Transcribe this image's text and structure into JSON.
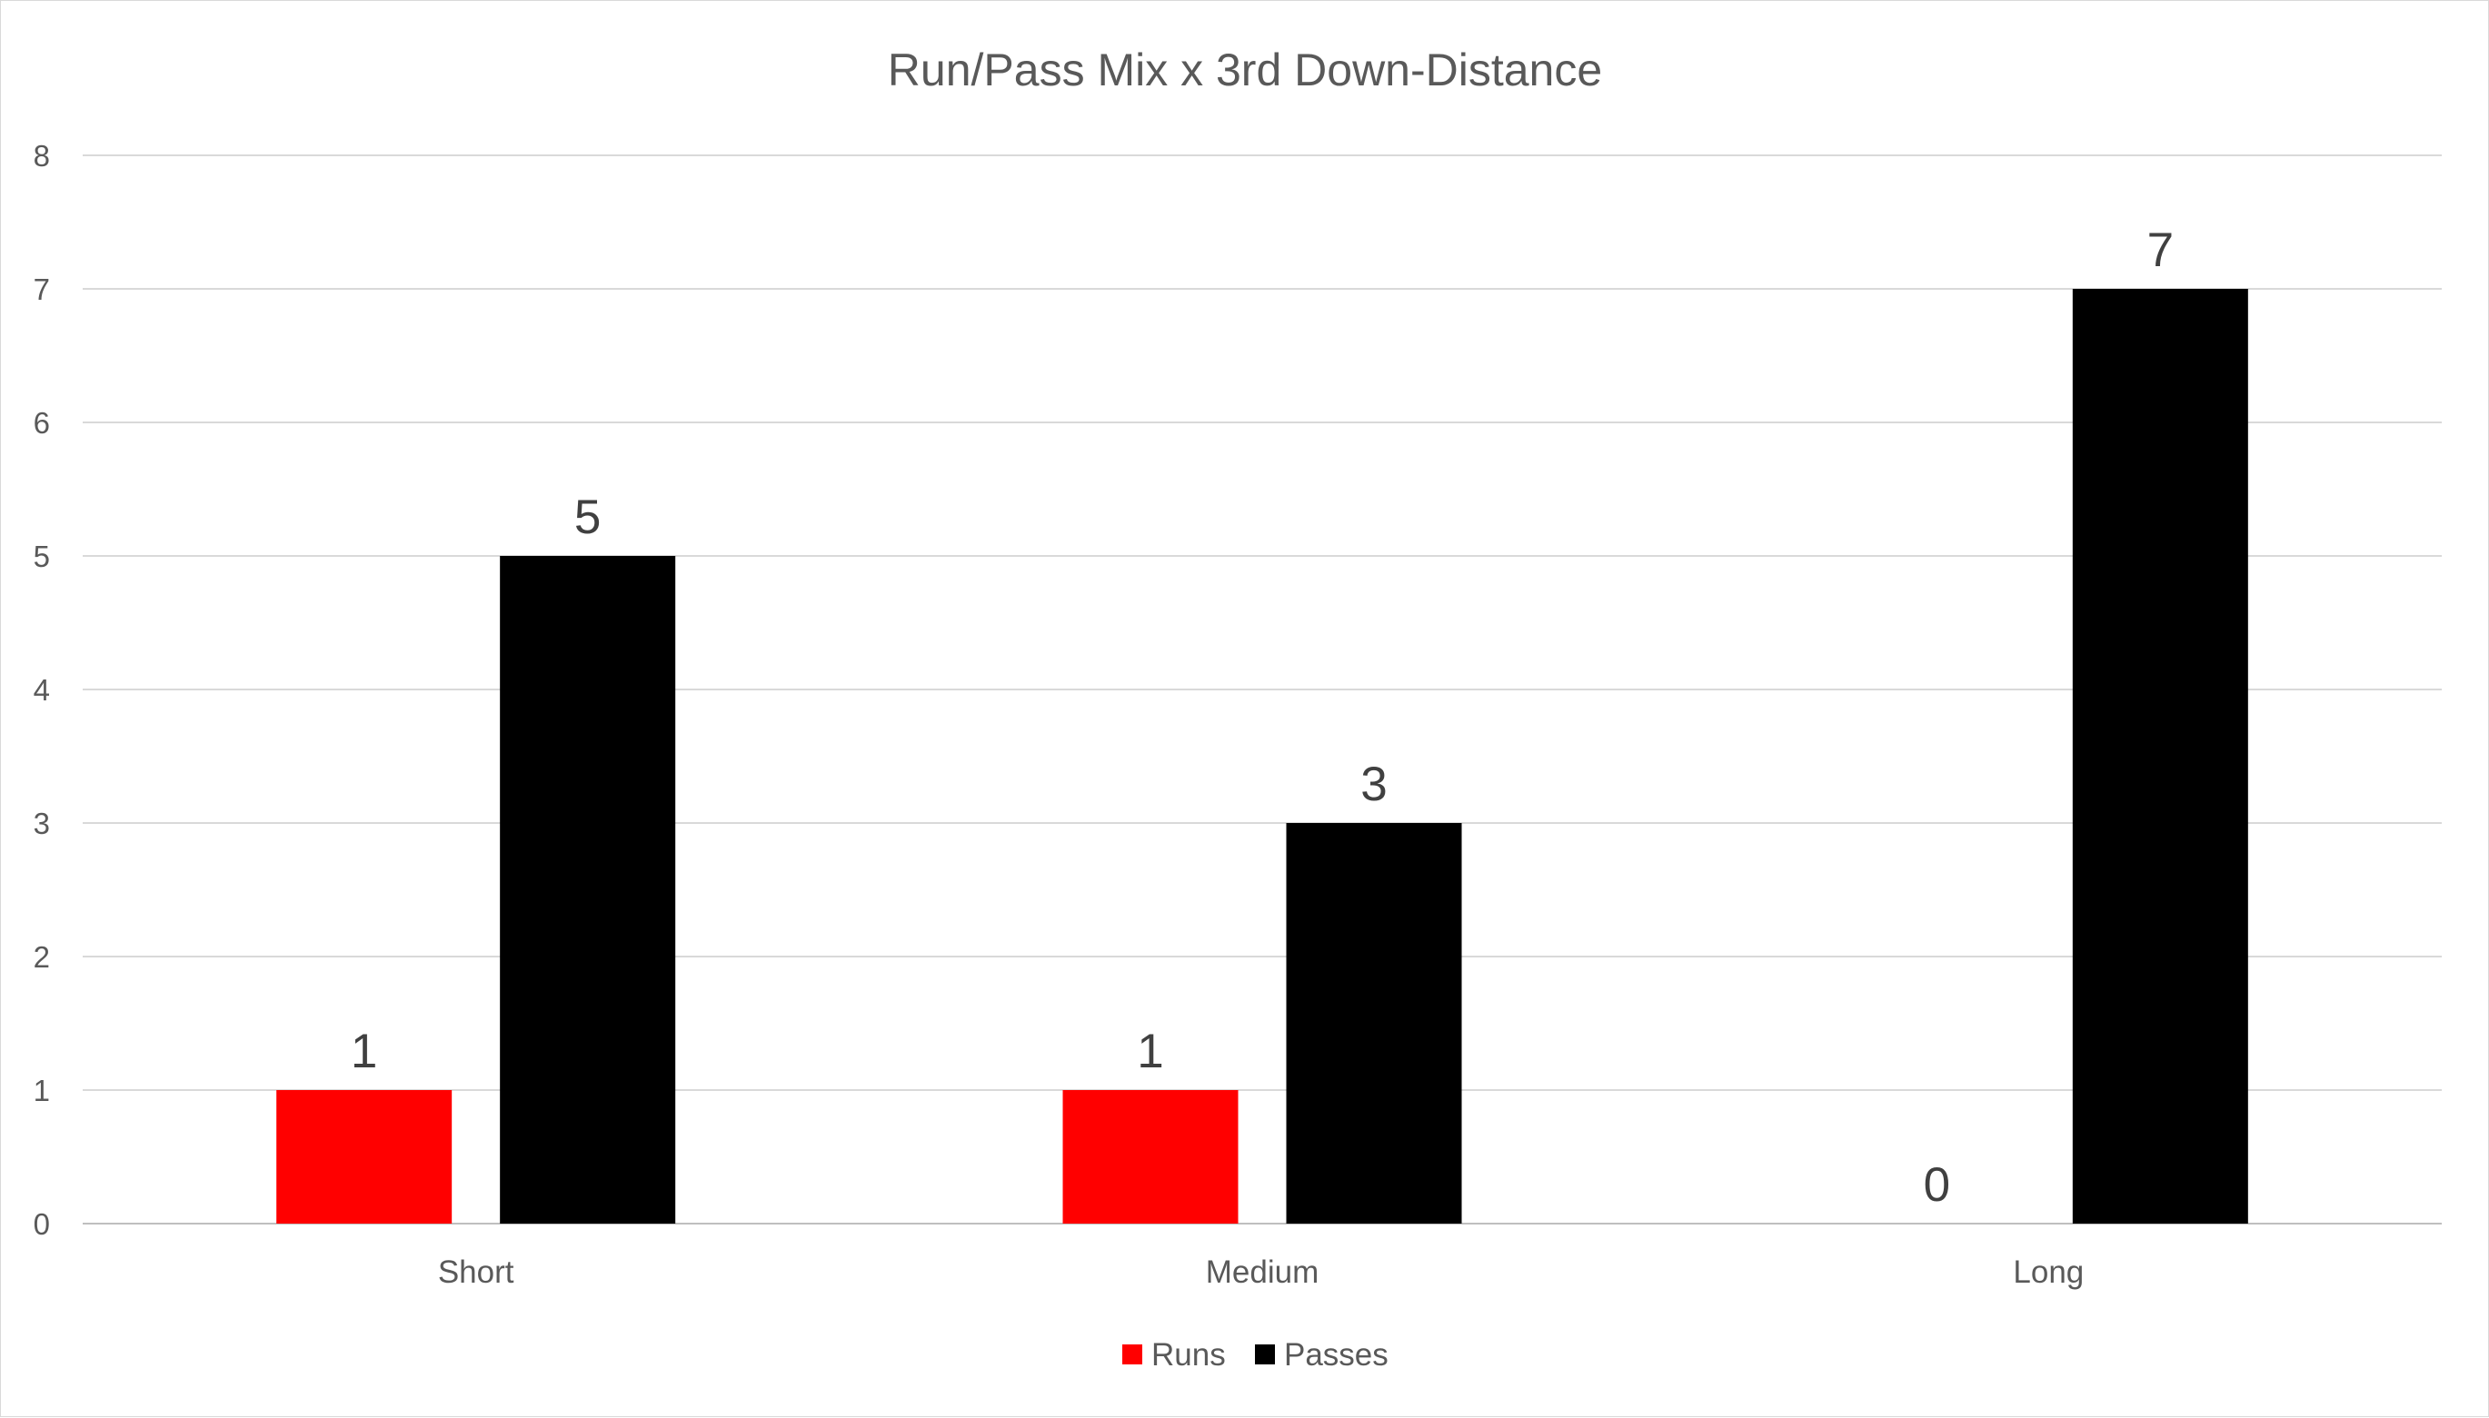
{
  "chart_data": {
    "type": "bar",
    "title": "Run/Pass Mix x 3rd Down-Distance",
    "categories": [
      "Short",
      "Medium",
      "Long"
    ],
    "series": [
      {
        "name": "Runs",
        "color": "#ff0000",
        "values": [
          1,
          1,
          0
        ]
      },
      {
        "name": "Passes",
        "color": "#000000",
        "values": [
          5,
          3,
          7
        ]
      }
    ],
    "ylim": [
      0,
      8
    ],
    "yticks": [
      0,
      1,
      2,
      3,
      4,
      5,
      6,
      7,
      8
    ],
    "grid": true,
    "legend_position": "bottom",
    "data_labels": true
  }
}
